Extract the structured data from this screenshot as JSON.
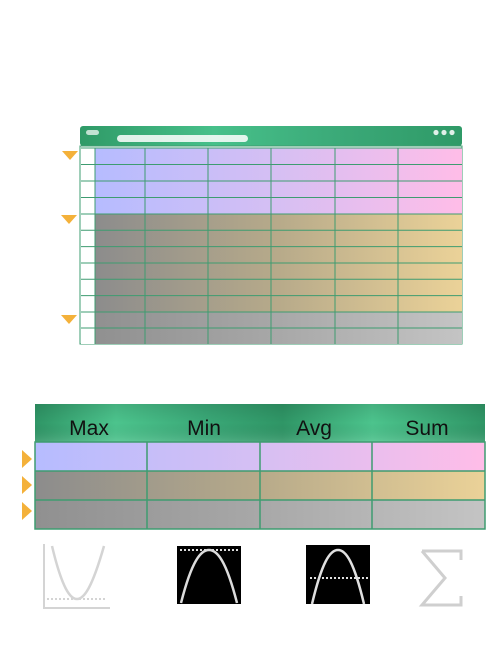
{
  "colors": {
    "window_green": "#2f9a67",
    "window_green_light": "#48c38a",
    "group_purple": [
      "#b6bcff",
      "#d6bff3",
      "#ffbde8"
    ],
    "group_tan": [
      "#8c8c8c",
      "#b7aa8a",
      "#ebd298"
    ],
    "group_gray": [
      "#909090",
      "#a8a8a8",
      "#c4c4c4"
    ],
    "marker_orange": "#f4b13a",
    "grid_line": "#3e9c70"
  },
  "spreadsheet": {
    "columns": 6,
    "row_groups": [
      {
        "name": "group-a",
        "rows": 4,
        "palette": "group_purple"
      },
      {
        "name": "group-b",
        "rows": 6,
        "palette": "group_tan"
      },
      {
        "name": "group-c",
        "rows": 2,
        "palette": "group_gray"
      }
    ]
  },
  "summary": {
    "headers": [
      "Max",
      "Min",
      "Avg",
      "Sum"
    ],
    "rows": [
      {
        "palette": "group_purple"
      },
      {
        "palette": "group_tan"
      },
      {
        "palette": "group_gray"
      }
    ]
  },
  "icons": [
    "parabola-min-icon",
    "parabola-max-icon",
    "parabola-average-icon",
    "sigma-sum-icon"
  ]
}
